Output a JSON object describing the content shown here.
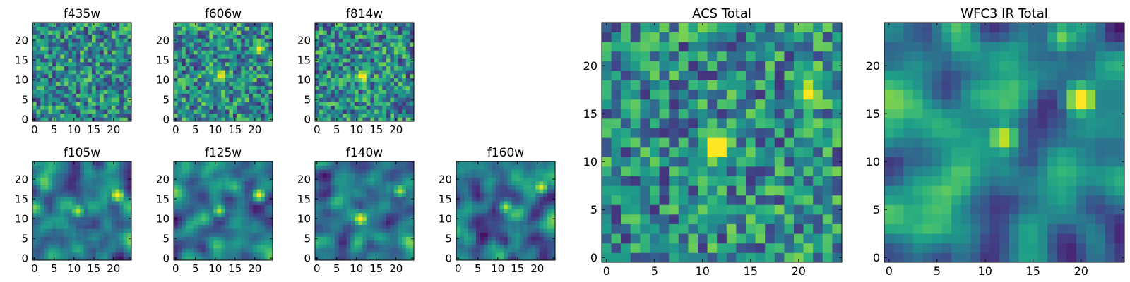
{
  "chart_data": [
    {
      "type": "heatmap",
      "title": "f435w",
      "grid_size": [
        25,
        25
      ],
      "xlim": [
        0,
        24
      ],
      "ylim": [
        0,
        24
      ],
      "xticks": [
        0,
        5,
        10,
        15,
        20
      ],
      "yticks": [
        0,
        5,
        10,
        15,
        20
      ],
      "grid": false,
      "colormap": "viridis",
      "noise": "pixel",
      "sources": []
    },
    {
      "type": "heatmap",
      "title": "f606w",
      "grid_size": [
        25,
        25
      ],
      "xlim": [
        0,
        24
      ],
      "ylim": [
        0,
        24
      ],
      "xticks": [
        0,
        5,
        10,
        15,
        20
      ],
      "yticks": [
        0,
        5,
        10,
        15,
        20
      ],
      "grid": false,
      "colormap": "viridis",
      "noise": "pixel",
      "sources": [
        {
          "x": 11.5,
          "y": 11,
          "peak": 0.95
        },
        {
          "x": 21,
          "y": 18,
          "peak": 0.8
        }
      ]
    },
    {
      "type": "heatmap",
      "title": "f814w",
      "grid_size": [
        25,
        25
      ],
      "xlim": [
        0,
        24
      ],
      "ylim": [
        0,
        24
      ],
      "xticks": [
        0,
        5,
        10,
        15,
        20
      ],
      "yticks": [
        0,
        5,
        10,
        15,
        20
      ],
      "grid": false,
      "colormap": "viridis",
      "noise": "pixel",
      "sources": [
        {
          "x": 11.5,
          "y": 11,
          "peak": 0.9
        },
        {
          "x": 21,
          "y": 19,
          "peak": 0.6
        }
      ]
    },
    {
      "type": "heatmap",
      "title": "f105w",
      "grid_size": [
        25,
        25
      ],
      "xlim": [
        0,
        24
      ],
      "ylim": [
        0,
        24
      ],
      "xticks": [
        0,
        5,
        10,
        15,
        20
      ],
      "yticks": [
        0,
        5,
        10,
        15,
        20
      ],
      "grid": false,
      "colormap": "viridis",
      "noise": "smooth",
      "sources": [
        {
          "x": 11,
          "y": 12,
          "peak": 0.75
        },
        {
          "x": 21,
          "y": 16,
          "peak": 0.85
        }
      ]
    },
    {
      "type": "heatmap",
      "title": "f125w",
      "grid_size": [
        25,
        25
      ],
      "xlim": [
        0,
        24
      ],
      "ylim": [
        0,
        24
      ],
      "xticks": [
        0,
        5,
        10,
        15,
        20
      ],
      "yticks": [
        0,
        5,
        10,
        15,
        20
      ],
      "grid": false,
      "colormap": "viridis",
      "noise": "smooth",
      "sources": [
        {
          "x": 11,
          "y": 12,
          "peak": 0.7
        },
        {
          "x": 21,
          "y": 16,
          "peak": 0.85
        }
      ]
    },
    {
      "type": "heatmap",
      "title": "f140w",
      "grid_size": [
        25,
        25
      ],
      "xlim": [
        0,
        24
      ],
      "ylim": [
        0,
        24
      ],
      "xticks": [
        0,
        5,
        10,
        15,
        20
      ],
      "yticks": [
        0,
        5,
        10,
        15,
        20
      ],
      "grid": false,
      "colormap": "viridis",
      "noise": "smooth",
      "sources": [
        {
          "x": 11,
          "y": 10,
          "peak": 0.8
        },
        {
          "x": 21,
          "y": 17,
          "peak": 0.75
        }
      ]
    },
    {
      "type": "heatmap",
      "title": "f160w",
      "grid_size": [
        25,
        25
      ],
      "xlim": [
        0,
        24
      ],
      "ylim": [
        0,
        24
      ],
      "xticks": [
        0,
        5,
        10,
        15,
        20
      ],
      "yticks": [
        0,
        5,
        10,
        15,
        20
      ],
      "grid": false,
      "colormap": "viridis",
      "noise": "smooth",
      "sources": [
        {
          "x": 12,
          "y": 13,
          "peak": 0.7
        },
        {
          "x": 21,
          "y": 18,
          "peak": 0.8
        }
      ]
    },
    {
      "type": "heatmap",
      "title": "ACS Total",
      "grid_size": [
        25,
        25
      ],
      "xlim": [
        0,
        24
      ],
      "ylim": [
        0,
        24
      ],
      "xticks": [
        0,
        5,
        10,
        15,
        20
      ],
      "yticks": [
        0,
        5,
        10,
        15,
        20
      ],
      "grid": false,
      "colormap": "viridis",
      "noise": "pixel",
      "sources": [
        {
          "x": 11.5,
          "y": 11.5,
          "peak": 1.0
        },
        {
          "x": 21,
          "y": 17,
          "peak": 0.85
        }
      ]
    },
    {
      "type": "heatmap",
      "title": "WFC3 IR Total",
      "grid_size": [
        25,
        25
      ],
      "xlim": [
        0,
        24
      ],
      "ylim": [
        0,
        24
      ],
      "xticks": [
        0,
        5,
        10,
        15,
        20
      ],
      "yticks": [
        0,
        5,
        10,
        15,
        20
      ],
      "grid": false,
      "colormap": "viridis",
      "noise": "smooth",
      "sources": [
        {
          "x": 12,
          "y": 12.5,
          "peak": 0.75
        },
        {
          "x": 20,
          "y": 16.5,
          "peak": 0.95
        },
        {
          "x": 18,
          "y": 23,
          "peak": 0.6
        }
      ]
    }
  ]
}
